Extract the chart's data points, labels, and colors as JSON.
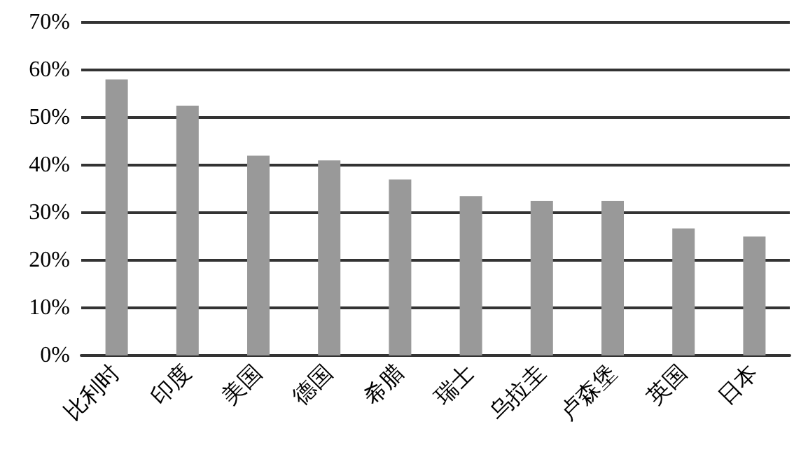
{
  "chart_data": {
    "type": "bar",
    "categories": [
      "比利时",
      "印度",
      "美国",
      "德国",
      "希腊",
      "瑞士",
      "乌拉圭",
      "卢森堡",
      "英国",
      "日本"
    ],
    "values": [
      58,
      52.5,
      42,
      41,
      37,
      33.5,
      32.5,
      32.5,
      26.7,
      25
    ],
    "color": "#999999",
    "ylim": [
      0,
      70
    ],
    "yticks": [
      {
        "value": 0,
        "label": "0%"
      },
      {
        "value": 10,
        "label": "10%"
      },
      {
        "value": 20,
        "label": "20%"
      },
      {
        "value": 30,
        "label": "30%"
      },
      {
        "value": 40,
        "label": "40%"
      },
      {
        "value": 50,
        "label": "50%"
      },
      {
        "value": 60,
        "label": "60%"
      },
      {
        "value": 70,
        "label": "70%"
      }
    ],
    "grid": true
  }
}
